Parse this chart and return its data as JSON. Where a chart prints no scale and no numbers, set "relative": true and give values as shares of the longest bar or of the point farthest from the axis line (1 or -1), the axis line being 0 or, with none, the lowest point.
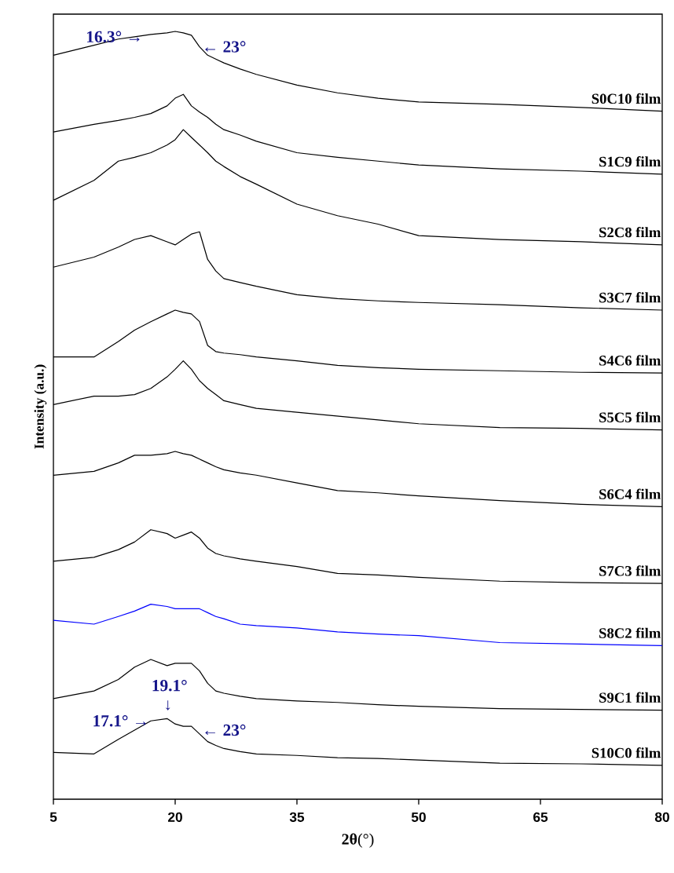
{
  "chart_data": {
    "type": "line",
    "relative": true,
    "xlabel": "**2θ**(°)",
    "ylabel": "Intensity (a.u.)",
    "xlim": [
      5,
      80
    ],
    "xticks": [
      5,
      20,
      35,
      50,
      65,
      80
    ],
    "x": [
      5,
      10,
      13,
      15,
      17,
      19,
      20,
      21,
      22,
      23,
      24,
      25,
      26,
      28,
      30,
      35,
      40,
      45,
      50,
      60,
      70,
      80
    ],
    "series": [
      {
        "name": "S0C10 film",
        "color": "#000000",
        "values": [
          0.969,
          0.982,
          0.99,
          0.993,
          0.996,
          0.998,
          1.0,
          0.998,
          0.995,
          0.98,
          0.969,
          0.964,
          0.959,
          0.951,
          0.944,
          0.93,
          0.92,
          0.913,
          0.908,
          0.905,
          0.901,
          0.896
        ]
      },
      {
        "name": "S1C9 film",
        "color": "#000000",
        "values": [
          0.869,
          0.879,
          0.884,
          0.888,
          0.893,
          0.903,
          0.913,
          0.918,
          0.903,
          0.895,
          0.888,
          0.879,
          0.872,
          0.865,
          0.857,
          0.842,
          0.836,
          0.831,
          0.826,
          0.821,
          0.818,
          0.814
        ]
      },
      {
        "name": "S2C8 film",
        "color": "#000000",
        "values": [
          0.78,
          0.806,
          0.831,
          0.836,
          0.842,
          0.852,
          0.859,
          0.872,
          0.862,
          0.852,
          0.842,
          0.831,
          0.824,
          0.811,
          0.801,
          0.775,
          0.76,
          0.749,
          0.734,
          0.729,
          0.726,
          0.722
        ]
      },
      {
        "name": "S3C7 film",
        "color": "#000000",
        "values": [
          0.693,
          0.706,
          0.719,
          0.729,
          0.734,
          0.726,
          0.722,
          0.729,
          0.736,
          0.739,
          0.703,
          0.688,
          0.678,
          0.673,
          0.668,
          0.657,
          0.652,
          0.649,
          0.647,
          0.644,
          0.64,
          0.637
        ]
      },
      {
        "name": "S4C6 film",
        "color": "#000000",
        "values": [
          0.576,
          0.576,
          0.596,
          0.611,
          0.622,
          0.632,
          0.637,
          0.634,
          0.632,
          0.622,
          0.591,
          0.583,
          0.581,
          0.579,
          0.576,
          0.571,
          0.565,
          0.562,
          0.56,
          0.558,
          0.556,
          0.555
        ]
      },
      {
        "name": "S5C5 film",
        "color": "#000000",
        "values": [
          0.514,
          0.525,
          0.525,
          0.527,
          0.535,
          0.55,
          0.56,
          0.571,
          0.56,
          0.545,
          0.535,
          0.527,
          0.519,
          0.514,
          0.509,
          0.504,
          0.499,
          0.494,
          0.489,
          0.484,
          0.483,
          0.481
        ]
      },
      {
        "name": "S6C4 film",
        "color": "#000000",
        "values": [
          0.422,
          0.427,
          0.438,
          0.448,
          0.448,
          0.45,
          0.453,
          0.45,
          0.448,
          0.443,
          0.438,
          0.433,
          0.429,
          0.425,
          0.422,
          0.412,
          0.402,
          0.399,
          0.395,
          0.389,
          0.384,
          0.381
        ]
      },
      {
        "name": "S7C3 film",
        "color": "#000000",
        "values": [
          0.31,
          0.315,
          0.325,
          0.335,
          0.351,
          0.346,
          0.34,
          0.344,
          0.348,
          0.34,
          0.327,
          0.32,
          0.317,
          0.313,
          0.31,
          0.303,
          0.294,
          0.292,
          0.289,
          0.284,
          0.282,
          0.281
        ]
      },
      {
        "name": "S8C2 film",
        "color": "#0000ff",
        "values": [
          0.233,
          0.228,
          0.238,
          0.245,
          0.254,
          0.251,
          0.248,
          0.248,
          0.248,
          0.248,
          0.243,
          0.238,
          0.235,
          0.228,
          0.226,
          0.223,
          0.218,
          0.215,
          0.213,
          0.204,
          0.202,
          0.2
        ]
      },
      {
        "name": "S9C1 film",
        "color": "#000000",
        "values": [
          0.131,
          0.141,
          0.156,
          0.172,
          0.182,
          0.174,
          0.177,
          0.177,
          0.177,
          0.167,
          0.151,
          0.141,
          0.138,
          0.134,
          0.131,
          0.128,
          0.126,
          0.123,
          0.121,
          0.118,
          0.117,
          0.116
        ]
      },
      {
        "name": "S10C0 film",
        "color": "#000000",
        "values": [
          0.061,
          0.059,
          0.078,
          0.09,
          0.102,
          0.105,
          0.098,
          0.095,
          0.095,
          0.085,
          0.075,
          0.07,
          0.066,
          0.062,
          0.059,
          0.057,
          0.054,
          0.053,
          0.051,
          0.047,
          0.046,
          0.044
        ]
      }
    ],
    "annotations": [
      {
        "text": "16.3° →",
        "x": 16.3,
        "y": 0.993
      },
      {
        "text": "← 23°",
        "x": 23,
        "y": 0.98
      },
      {
        "text": "19.1° ↓",
        "x": 19.1,
        "y": 0.11
      },
      {
        "text": "17.1° →",
        "x": 17.1,
        "y": 0.102
      },
      {
        "text": "← 23°",
        "x": 23,
        "y": 0.09
      }
    ]
  }
}
